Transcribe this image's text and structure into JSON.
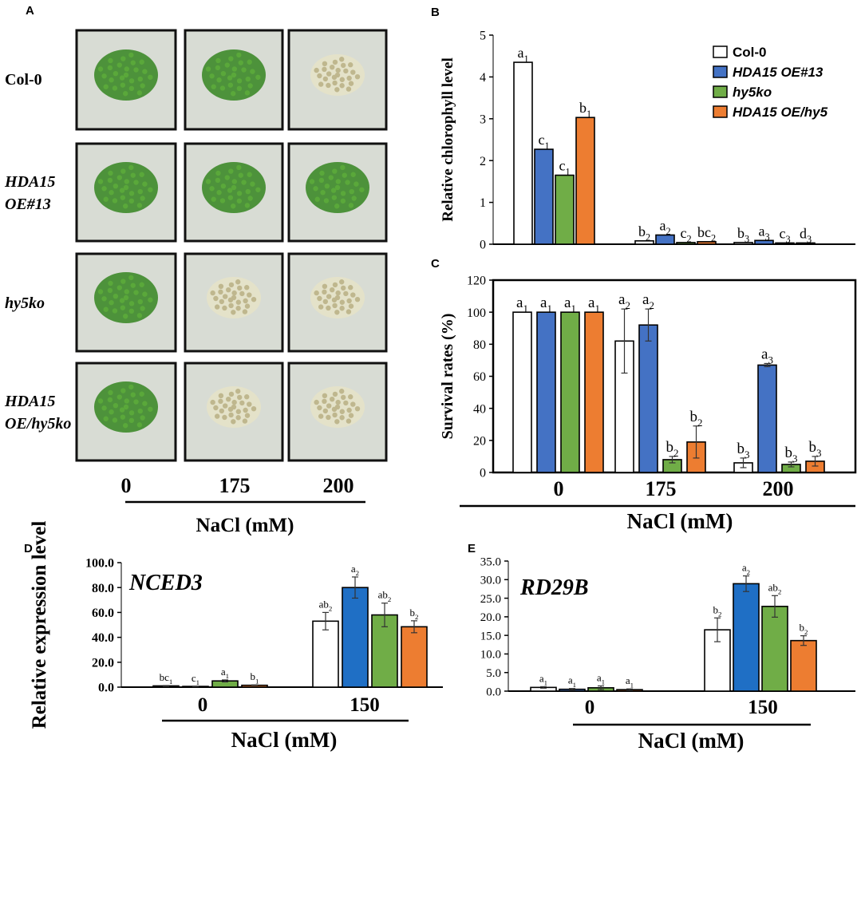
{
  "colors": {
    "col0": "#ffffff",
    "oe13": "#4472c4",
    "hy5ko": "#70ad47",
    "oehy5": "#ed7d31",
    "oe13_panelDE": "#1f6fc5",
    "oe13_panelE_0mM": "#4472c4",
    "plate_bg": "#d8dcd4",
    "seedling_green": "#3e8a2a",
    "seedling_pale": "#e6e2c8"
  },
  "panel_A": {
    "letter": "A",
    "row_labels": [
      {
        "line1": "Col-0",
        "line2": ""
      },
      {
        "line1": "HDA15",
        "line2": "OE#13"
      },
      {
        "line1": "hy5ko",
        "line2": ""
      },
      {
        "line1": "HDA15",
        "line2": "OE/hy5ko"
      }
    ],
    "columns": [
      "0",
      "175",
      "200"
    ],
    "xlabel": "NaCl (mM)",
    "plates": [
      [
        "green",
        "green",
        "pale"
      ],
      [
        "green",
        "green",
        "green"
      ],
      [
        "green",
        "pale",
        "pale"
      ],
      [
        "green",
        "pale",
        "pale"
      ]
    ]
  },
  "chart_data": [
    {
      "panel": "B",
      "type": "bar",
      "ylabel": "Relative chlorophyll level",
      "ylim": [
        0,
        5
      ],
      "yticks": [
        "0",
        "1",
        "2",
        "3",
        "4",
        "5"
      ],
      "categories": [
        "",
        "",
        ""
      ],
      "legend_position": "top-right",
      "series": [
        {
          "name": "Col-0",
          "values": [
            4.35,
            0.08,
            0.04
          ],
          "letters": [
            "a1",
            "b2",
            "b3"
          ]
        },
        {
          "name": "HDA15 OE#13",
          "values": [
            2.27,
            0.22,
            0.09
          ],
          "letters": [
            "c1",
            "a2",
            "a3"
          ]
        },
        {
          "name": "hy5ko",
          "values": [
            1.65,
            0.04,
            0.03
          ],
          "letters": [
            "c1",
            "c2",
            "c3"
          ]
        },
        {
          "name": "HDA15 OE/hy5",
          "values": [
            3.03,
            0.06,
            0.03
          ],
          "letters": [
            "b1",
            "bc2",
            "d3"
          ]
        }
      ]
    },
    {
      "panel": "C",
      "type": "bar",
      "ylabel": "Survival rates (%)",
      "xlabel": "NaCl (mM)",
      "ylim": [
        0,
        120
      ],
      "yticks": [
        "0",
        "20",
        "40",
        "60",
        "80",
        "100",
        "120"
      ],
      "categories": [
        "0",
        "175",
        "200"
      ],
      "series": [
        {
          "name": "Col-0",
          "values": [
            100,
            82,
            6
          ],
          "errors": [
            0,
            20,
            3
          ],
          "letters": [
            "a1",
            "a2",
            "b3"
          ]
        },
        {
          "name": "HDA15 OE#13",
          "values": [
            100,
            92,
            67
          ],
          "errors": [
            0,
            10,
            1
          ],
          "letters": [
            "a1",
            "a2",
            "a3"
          ]
        },
        {
          "name": "hy5ko",
          "values": [
            100,
            8,
            5
          ],
          "errors": [
            0,
            2,
            1.5
          ],
          "letters": [
            "a1",
            "b2",
            "b3"
          ]
        },
        {
          "name": "HDA15 OE/hy5",
          "values": [
            100,
            19,
            7
          ],
          "errors": [
            0,
            10,
            3
          ],
          "letters": [
            "a1",
            "b2",
            "b3"
          ]
        }
      ]
    },
    {
      "panel": "D",
      "type": "bar",
      "gene": "NCED3",
      "ylabel": "Relative expression  level",
      "xlabel": "NaCl (mM)",
      "ylim": [
        0,
        100
      ],
      "yticks": [
        "0.0",
        "20.0",
        "40.0",
        "60.0",
        "80.0",
        "100.0"
      ],
      "categories": [
        "0",
        "150"
      ],
      "series": [
        {
          "name": "Col-0",
          "values": [
            1.0,
            53.0
          ],
          "errors": [
            0.3,
            7.0
          ],
          "letters": [
            "bc1",
            "ab2"
          ]
        },
        {
          "name": "HDA15 OE#13",
          "values": [
            0.6,
            80.0
          ],
          "errors": [
            0.2,
            8.5
          ],
          "letters": [
            "c1",
            "a2"
          ]
        },
        {
          "name": "hy5ko",
          "values": [
            5.0,
            58.0
          ],
          "errors": [
            0.8,
            9.5
          ],
          "letters": [
            "a1",
            "ab2"
          ]
        },
        {
          "name": "HDA15 OE/hy5",
          "values": [
            1.5,
            48.5
          ],
          "errors": [
            0.3,
            4.8
          ],
          "letters": [
            "b1",
            "b2"
          ]
        }
      ]
    },
    {
      "panel": "E",
      "type": "bar",
      "gene": "RD29B",
      "ylabel": "",
      "xlabel": "NaCl (mM)",
      "ylim": [
        0,
        35
      ],
      "yticks": [
        "0.0",
        "5.0",
        "10.0",
        "15.0",
        "20.0",
        "25.0",
        "30.0",
        "35.0"
      ],
      "categories": [
        "0",
        "150"
      ],
      "series": [
        {
          "name": "Col-0",
          "values": [
            1.0,
            16.5
          ],
          "errors": [
            0.2,
            3.2
          ],
          "letters": [
            "a1",
            "b2"
          ]
        },
        {
          "name": "HDA15 OE#13",
          "values": [
            0.5,
            28.9
          ],
          "errors": [
            0.2,
            2.1
          ],
          "letters": [
            "a1",
            "a2"
          ]
        },
        {
          "name": "hy5ko",
          "values": [
            0.9,
            22.8
          ],
          "errors": [
            0.5,
            2.9
          ],
          "letters": [
            "a1",
            "ab2"
          ]
        },
        {
          "name": "HDA15 OE/hy5",
          "values": [
            0.4,
            13.6
          ],
          "errors": [
            0.2,
            1.3
          ],
          "letters": [
            "a1",
            "b2"
          ]
        }
      ]
    }
  ]
}
